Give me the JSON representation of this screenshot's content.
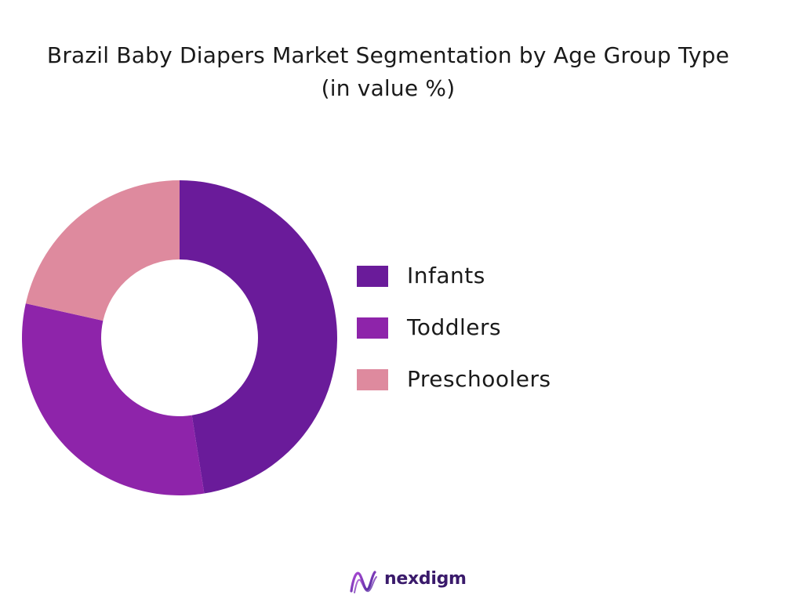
{
  "chart_data": {
    "type": "pie",
    "title": "Brazil Baby Diapers Market Segmentation by Age Group Type",
    "subtitle": "(in value %)",
    "donut": true,
    "legend_position": "right",
    "categories": [
      "Infants",
      "Toddlers",
      "Preschoolers"
    ],
    "values": [
      47.5,
      31.0,
      21.5
    ],
    "colors": [
      "#6a1b9a",
      "#8e24aa",
      "#de8a9e"
    ]
  },
  "brand": {
    "name": "nexdigm"
  }
}
